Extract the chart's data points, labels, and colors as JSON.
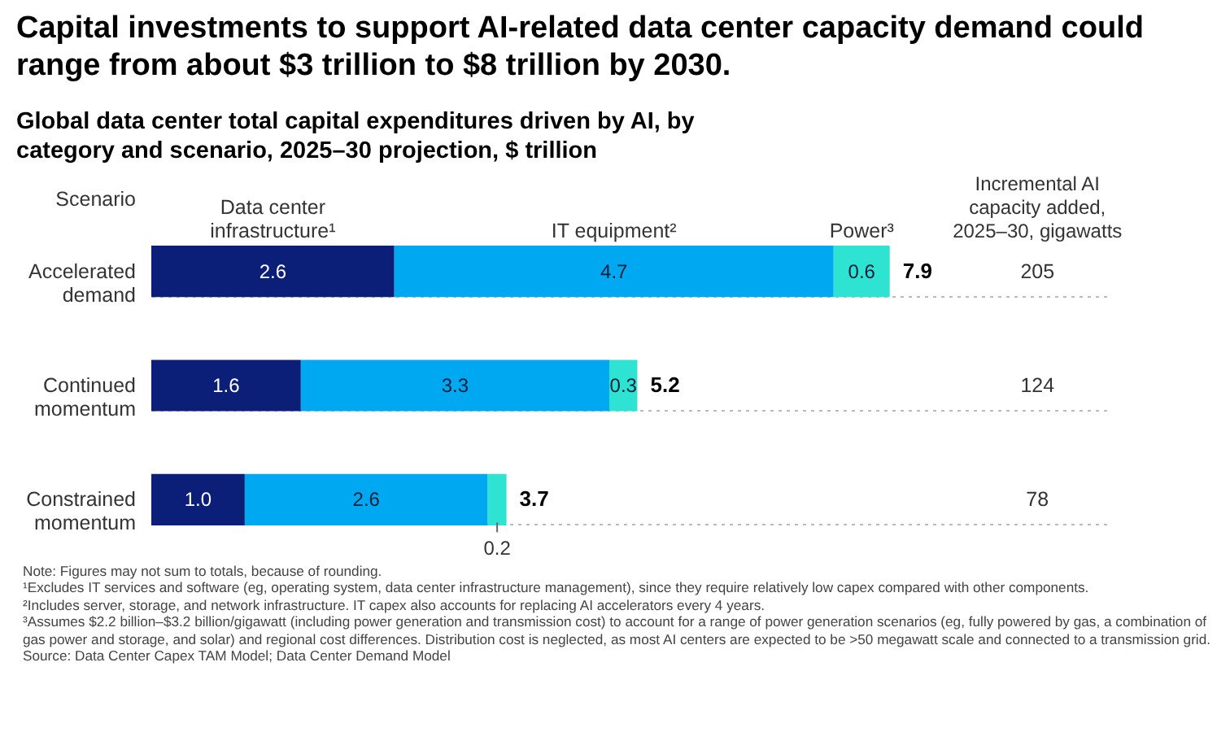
{
  "chart_data": {
    "type": "bar",
    "orientation": "horizontal",
    "stacked": true,
    "grid": "y",
    "legend": "top",
    "title": "Capital investments to support AI-related data center capacity demand could range from about $3 trillion to $8 trillion by 2030.",
    "subtitle": "Global data center total capital expenditures driven by AI, by category and scenario, 2025–30 projection, $ trillion",
    "ylabel": "Scenario",
    "categories": [
      "Accelerated demand",
      "Continued momentum",
      "Constrained momentum"
    ],
    "series": [
      {
        "name": "Data center infrastructure¹",
        "color": "#0b1f78",
        "values": [
          2.6,
          1.6,
          1.0
        ],
        "value_labels": [
          "2.6",
          "1.6",
          "1.0"
        ]
      },
      {
        "name": "IT equipment²",
        "color": "#00a8f2",
        "values": [
          4.7,
          3.3,
          2.6
        ],
        "value_labels": [
          "4.7",
          "3.3",
          "2.6"
        ]
      },
      {
        "name": "Power³",
        "color": "#2fe3d3",
        "values": [
          0.6,
          0.3,
          0.2
        ],
        "value_labels": [
          "0.6",
          "0.3",
          "0.2"
        ]
      }
    ],
    "totals": [
      "7.9",
      "5.2",
      "3.7"
    ],
    "annotations": [
      "Incremental AI capacity added, 2025–30, gigawatts",
      "205",
      "124",
      "78",
      "Note: Figures may not sum to totals, because of rounding.",
      "¹Excludes IT services and software (eg, operating system, data center infrastructure management), since they require relatively low capex compared with other components.",
      "²Includes server, storage, and network infrastructure. IT capex also accounts for replacing AI accelerators every 4 years.",
      "³Assumes $2.2 billion–$3.2 billion/gigawatt (including power generation and transmission cost) to account for a range of power generation scenarios (eg, fully powered by gas, a combination of gas power and storage, and solar) and regional cost differences. Distribution cost is neglected, as most AI centers are expected to be >50 megawatt scale and connected to a transmission grid.",
      "Source: Data Center Capex TAM Model; Data Center Demand Model"
    ]
  }
}
